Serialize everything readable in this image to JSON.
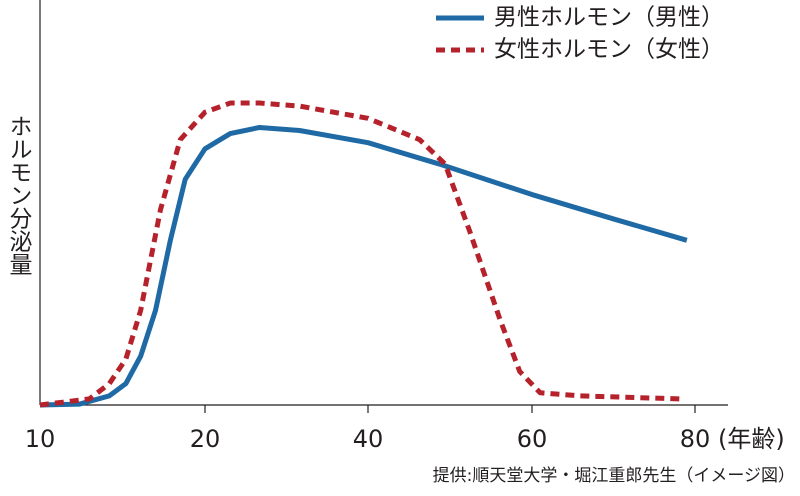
{
  "chart_data": {
    "type": "line",
    "y_label": "ホルモン分泌量",
    "x_label": "(年齢)",
    "source": "提供:順天堂大学・堀江重郎先生（イメージ図）",
    "xticks": [
      10,
      20,
      40,
      60,
      80
    ],
    "ylim": [
      0,
      100
    ],
    "legend": "top-right",
    "series": [
      {
        "name": "男性ホルモン（男性）",
        "color": "#1f6aa5",
        "style": "solid",
        "x": [
          10,
          12.4,
          14.2,
          15.2,
          16.1,
          17,
          17.9,
          18.8,
          20,
          23.1,
          26.7,
          31.6,
          40,
          48.7,
          60,
          70,
          79
        ],
        "values": [
          0,
          0.3,
          3,
          7,
          16,
          31,
          54,
          74,
          84,
          89,
          91,
          90,
          86,
          79,
          69,
          61,
          54
        ]
      },
      {
        "name": "女性ホルモン（女性）",
        "color": "#b5222b",
        "style": "dashed",
        "x": [
          10,
          13,
          14.2,
          15.2,
          16.1,
          17.3,
          18.5,
          20,
          23.1,
          26.7,
          31.6,
          40,
          46.3,
          49.4,
          52.4,
          56.1,
          58.5,
          61,
          65.9,
          78.1
        ],
        "values": [
          0,
          2,
          7,
          15,
          31,
          64,
          87,
          96,
          99,
          99,
          98,
          94,
          87,
          79,
          57,
          28,
          11,
          4,
          3,
          2
        ]
      }
    ]
  }
}
